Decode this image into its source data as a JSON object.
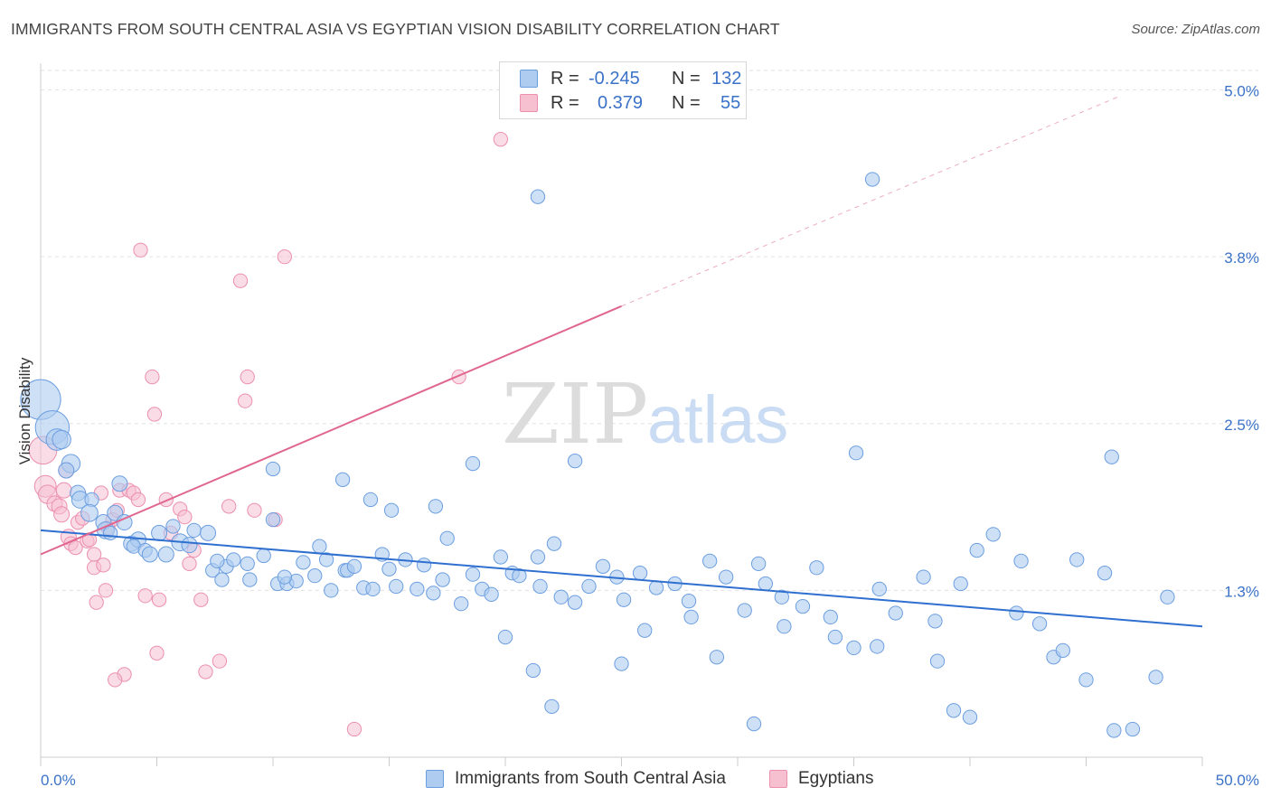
{
  "title": "IMMIGRANTS FROM SOUTH CENTRAL ASIA VS EGYPTIAN VISION DISABILITY CORRELATION CHART",
  "source": "Source: ZipAtlas.com",
  "legend_stats": [
    {
      "r_label": "R =",
      "r_value": "-0.245",
      "n_label": "N =",
      "n_value": "132"
    },
    {
      "r_label": "R =",
      "r_value": "0.379",
      "n_label": "N =",
      "n_value": "55"
    }
  ],
  "watermark": {
    "zip": "ZIP",
    "atlas": "atlas"
  },
  "colors": {
    "blue_fill": "#aecbf0",
    "blue_stroke": "#6b9ee0",
    "blue_line": "#2f6fcf",
    "pink_fill": "#f6c0d1",
    "pink_stroke": "#ec8fae",
    "pink_line": "#e06690",
    "grid": "#e2e2e2",
    "tick_label": "#3b72c8"
  },
  "chart_data": {
    "type": "scatter",
    "title": "IMMIGRANTS FROM SOUTH CENTRAL ASIA VS EGYPTIAN VISION DISABILITY CORRELATION CHART",
    "xlabel": "",
    "ylabel": "Vision Disability",
    "xlim": [
      0,
      50
    ],
    "ylim": [
      0.0,
      5.2
    ],
    "x_tick_labels": [
      "0.0%",
      "50.0%"
    ],
    "y_ticks": [
      1.25,
      2.5,
      3.75,
      5.0
    ],
    "y_tick_labels": [
      "1.3%",
      "2.5%",
      "3.8%",
      "5.0%"
    ],
    "grid": true,
    "legend_position": "bottom",
    "series": [
      {
        "name": "Immigrants from South Central Asia",
        "color": "#aecbf0",
        "trend": {
          "x": [
            0,
            50
          ],
          "y": [
            1.7,
            0.98
          ]
        },
        "points": [
          [
            0.0,
            2.68,
            26
          ],
          [
            0.5,
            2.47,
            22
          ],
          [
            0.7,
            2.38,
            14
          ],
          [
            0.9,
            2.38,
            12
          ],
          [
            1.3,
            2.2,
            12
          ],
          [
            1.1,
            2.15,
            10
          ],
          [
            1.6,
            1.98,
            10
          ],
          [
            1.7,
            1.93,
            11
          ],
          [
            2.2,
            1.93,
            9
          ],
          [
            2.1,
            1.83,
            11
          ],
          [
            2.7,
            1.76,
            10
          ],
          [
            2.8,
            1.7,
            11
          ],
          [
            3.0,
            1.68,
            9
          ],
          [
            3.2,
            1.83,
            10
          ],
          [
            3.4,
            2.05,
            10
          ],
          [
            3.6,
            1.76,
            10
          ],
          [
            3.9,
            1.6,
            10
          ],
          [
            4.2,
            1.63,
            10
          ],
          [
            4.0,
            1.58,
            9
          ],
          [
            4.5,
            1.55,
            9
          ],
          [
            4.7,
            1.52,
            10
          ],
          [
            5.1,
            1.68,
            10
          ],
          [
            5.4,
            1.52,
            10
          ],
          [
            5.7,
            1.73,
            9
          ],
          [
            6.0,
            1.61,
            11
          ],
          [
            6.4,
            1.59,
            10
          ],
          [
            6.6,
            1.7,
            9
          ],
          [
            7.2,
            1.68,
            10
          ],
          [
            7.4,
            1.4,
            9
          ],
          [
            7.8,
            1.33,
            9
          ],
          [
            8.0,
            1.43,
            9
          ],
          [
            7.6,
            1.47,
            9
          ],
          [
            8.3,
            1.48,
            9
          ],
          [
            8.9,
            1.45,
            9
          ],
          [
            9.0,
            1.33,
            9
          ],
          [
            9.6,
            1.51,
            9
          ],
          [
            10.0,
            1.78,
            9
          ],
          [
            10.2,
            1.3,
            9
          ],
          [
            10.6,
            1.3,
            9
          ],
          [
            11.0,
            1.32,
            9
          ],
          [
            10.5,
            1.35,
            9
          ],
          [
            11.3,
            1.46,
            9
          ],
          [
            11.8,
            1.36,
            9
          ],
          [
            12.0,
            1.58,
            9
          ],
          [
            12.3,
            1.48,
            9
          ],
          [
            12.5,
            1.25,
            9
          ],
          [
            13.1,
            1.4,
            9
          ],
          [
            13.2,
            1.4,
            9
          ],
          [
            13.5,
            1.43,
            9
          ],
          [
            13.9,
            1.27,
            9
          ],
          [
            14.3,
            1.26,
            9
          ],
          [
            14.7,
            1.52,
            9
          ],
          [
            15.0,
            1.41,
            9
          ],
          [
            15.3,
            1.28,
            9
          ],
          [
            15.7,
            1.48,
            9
          ],
          [
            16.2,
            1.26,
            9
          ],
          [
            16.5,
            1.44,
            9
          ],
          [
            16.9,
            1.23,
            9
          ],
          [
            17.3,
            1.33,
            9
          ],
          [
            18.1,
            1.15,
            9
          ],
          [
            18.6,
            1.37,
            9
          ],
          [
            19.0,
            1.26,
            9
          ],
          [
            19.4,
            1.22,
            9
          ],
          [
            19.8,
            1.5,
            9
          ],
          [
            20.3,
            1.38,
            9
          ],
          [
            20.6,
            1.36,
            9
          ],
          [
            21.4,
            1.5,
            9
          ],
          [
            21.5,
            1.28,
            9
          ],
          [
            22.1,
            1.6,
            9
          ],
          [
            22.4,
            1.2,
            9
          ],
          [
            23.0,
            1.16,
            9
          ],
          [
            23.6,
            1.28,
            9
          ],
          [
            24.2,
            1.43,
            9
          ],
          [
            24.8,
            1.35,
            9
          ],
          [
            25.1,
            1.18,
            9
          ],
          [
            25.8,
            1.38,
            9
          ],
          [
            26.5,
            1.27,
            9
          ],
          [
            27.3,
            1.3,
            9
          ],
          [
            27.9,
            1.17,
            9
          ],
          [
            28.8,
            1.47,
            9
          ],
          [
            29.5,
            1.35,
            9
          ],
          [
            30.3,
            1.1,
            9
          ],
          [
            30.9,
            1.45,
            9
          ],
          [
            31.2,
            1.3,
            9
          ],
          [
            32.0,
            0.98,
            9
          ],
          [
            32.8,
            1.13,
            9
          ],
          [
            33.4,
            1.42,
            9
          ],
          [
            34.2,
            0.9,
            9
          ],
          [
            35.0,
            0.82,
            9
          ],
          [
            36.1,
            1.26,
            9
          ],
          [
            36.8,
            1.08,
            9
          ],
          [
            38.0,
            1.35,
            9
          ],
          [
            38.5,
            1.02,
            9
          ],
          [
            39.6,
            1.3,
            9
          ],
          [
            40.3,
            1.55,
            9
          ],
          [
            41.0,
            1.67,
            9
          ],
          [
            42.2,
            1.47,
            9
          ],
          [
            43.6,
            0.75,
            9
          ],
          [
            44.6,
            1.48,
            9
          ],
          [
            45.8,
            1.38,
            9
          ],
          [
            48.5,
            1.2,
            9
          ],
          [
            13.0,
            2.08,
            9
          ],
          [
            14.2,
            1.93,
            9
          ],
          [
            15.1,
            1.85,
            9
          ],
          [
            17.0,
            1.88,
            9
          ],
          [
            18.6,
            2.2,
            9
          ],
          [
            20.0,
            0.9,
            9
          ],
          [
            21.2,
            0.65,
            9
          ],
          [
            22.0,
            0.38,
            9
          ],
          [
            23.0,
            2.22,
            9
          ],
          [
            25.0,
            0.7,
            9
          ],
          [
            26.0,
            0.95,
            9
          ],
          [
            28.0,
            1.05,
            9
          ],
          [
            29.1,
            0.75,
            9
          ],
          [
            30.7,
            0.25,
            9
          ],
          [
            31.9,
            1.2,
            9
          ],
          [
            34.0,
            1.05,
            9
          ],
          [
            35.1,
            2.28,
            9
          ],
          [
            36.0,
            0.83,
            9
          ],
          [
            38.6,
            0.72,
            9
          ],
          [
            39.3,
            0.35,
            9
          ],
          [
            40.0,
            0.3,
            9
          ],
          [
            42.0,
            1.08,
            9
          ],
          [
            43.0,
            1.0,
            9
          ],
          [
            44.0,
            0.8,
            9
          ],
          [
            45.0,
            0.58,
            9
          ],
          [
            46.2,
            0.2,
            9
          ],
          [
            47.0,
            0.21,
            9
          ],
          [
            48.0,
            0.6,
            9
          ],
          [
            21.4,
            4.2,
            9
          ],
          [
            35.8,
            4.33,
            9
          ],
          [
            46.1,
            2.25,
            9
          ],
          [
            10.0,
            2.16,
            9
          ],
          [
            17.5,
            1.64,
            9
          ]
        ]
      },
      {
        "name": "Egyptians",
        "color": "#f6c0d1",
        "trend": {
          "x": [
            0,
            25
          ],
          "y": [
            1.52,
            3.38
          ]
        },
        "trend_extension": {
          "x": [
            25,
            46.4
          ],
          "y": [
            3.38,
            4.95
          ]
        },
        "points": [
          [
            0.1,
            2.3,
            18
          ],
          [
            0.2,
            2.03,
            14
          ],
          [
            0.3,
            1.97,
            12
          ],
          [
            0.6,
            1.9,
            10
          ],
          [
            0.8,
            1.88,
            10
          ],
          [
            0.9,
            1.82,
            10
          ],
          [
            1.0,
            2.0,
            10
          ],
          [
            1.1,
            2.15,
            10
          ],
          [
            1.2,
            1.65,
            10
          ],
          [
            1.3,
            1.6,
            9
          ],
          [
            1.5,
            1.57,
            9
          ],
          [
            1.6,
            1.76,
            9
          ],
          [
            1.8,
            1.79,
            9
          ],
          [
            2.0,
            1.62,
            9
          ],
          [
            2.1,
            1.63,
            9
          ],
          [
            2.3,
            1.52,
            9
          ],
          [
            2.3,
            1.42,
            9
          ],
          [
            2.4,
            1.16,
            9
          ],
          [
            2.6,
            1.98,
            9
          ],
          [
            2.7,
            1.44,
            9
          ],
          [
            2.8,
            1.25,
            9
          ],
          [
            2.9,
            1.72,
            9
          ],
          [
            3.1,
            1.78,
            9
          ],
          [
            3.3,
            1.85,
            9
          ],
          [
            3.4,
            2.0,
            9
          ],
          [
            3.6,
            0.62,
            9
          ],
          [
            3.8,
            2.0,
            9
          ],
          [
            4.0,
            1.98,
            9
          ],
          [
            4.2,
            1.93,
            9
          ],
          [
            4.5,
            1.21,
            9
          ],
          [
            4.8,
            2.85,
            9
          ],
          [
            4.9,
            2.57,
            9
          ],
          [
            5.1,
            1.18,
            9
          ],
          [
            5.0,
            0.78,
            9
          ],
          [
            5.4,
            1.93,
            9
          ],
          [
            5.6,
            1.68,
            9
          ],
          [
            6.0,
            1.86,
            9
          ],
          [
            6.2,
            1.8,
            9
          ],
          [
            6.4,
            1.45,
            9
          ],
          [
            6.6,
            1.55,
            9
          ],
          [
            6.9,
            1.18,
            9
          ],
          [
            7.1,
            0.64,
            9
          ],
          [
            7.7,
            0.72,
            9
          ],
          [
            8.1,
            1.88,
            9
          ],
          [
            8.6,
            3.57,
            9
          ],
          [
            8.9,
            2.85,
            9
          ],
          [
            8.8,
            2.67,
            9
          ],
          [
            9.2,
            1.85,
            9
          ],
          [
            10.5,
            3.75,
            9
          ],
          [
            10.1,
            1.78,
            9
          ],
          [
            13.5,
            0.21,
            9
          ],
          [
            18.0,
            2.85,
            9
          ],
          [
            19.8,
            4.63,
            9
          ],
          [
            4.3,
            3.8,
            9
          ],
          [
            3.2,
            0.58,
            9
          ]
        ]
      }
    ]
  },
  "bottom_legend": [
    {
      "label": "Immigrants from South Central Asia"
    },
    {
      "label": "Egyptians"
    }
  ]
}
